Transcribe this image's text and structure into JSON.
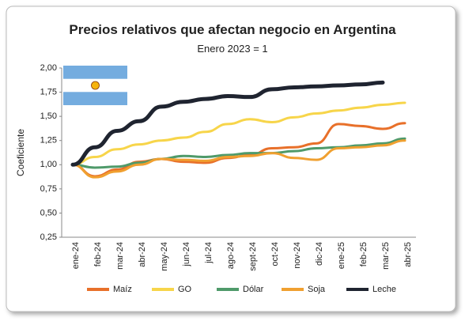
{
  "chart_data": {
    "type": "line",
    "title": "Precios relativos que afectan negocio en Argentina",
    "subtitle": "Enero 2023 = 1",
    "y_label": "Coeficiente",
    "categories": [
      "ene-24",
      "feb-24",
      "mar-24",
      "abr-24",
      "may-24",
      "jun-24",
      "jul-24",
      "ago-24",
      "sept-24",
      "oct-24",
      "nov-24",
      "dic-24",
      "ene-25",
      "feb-25",
      "mar-25",
      "abr-25"
    ],
    "series": [
      {
        "name": "Maíz",
        "color": "#e8702a",
        "values": [
          1.0,
          0.88,
          0.95,
          1.03,
          1.06,
          1.03,
          1.02,
          1.07,
          1.1,
          1.17,
          1.18,
          1.22,
          1.42,
          1.4,
          1.37,
          1.43
        ]
      },
      {
        "name": "GO",
        "color": "#f7d54a",
        "values": [
          1.0,
          1.08,
          1.16,
          1.21,
          1.25,
          1.28,
          1.34,
          1.42,
          1.47,
          1.44,
          1.49,
          1.53,
          1.56,
          1.59,
          1.62,
          1.64
        ]
      },
      {
        "name": "Dólar",
        "color": "#4f9a6a",
        "values": [
          1.0,
          0.97,
          0.98,
          1.02,
          1.06,
          1.09,
          1.08,
          1.1,
          1.12,
          1.12,
          1.14,
          1.17,
          1.18,
          1.2,
          1.22,
          1.27
        ]
      },
      {
        "name": "Soja",
        "color": "#f0a030",
        "values": [
          1.0,
          0.87,
          0.93,
          1.0,
          1.06,
          1.05,
          1.04,
          1.08,
          1.09,
          1.12,
          1.07,
          1.05,
          1.17,
          1.18,
          1.2,
          1.25
        ]
      },
      {
        "name": "Leche",
        "color": "#1f2430",
        "values": [
          1.0,
          1.18,
          1.35,
          1.45,
          1.6,
          1.65,
          1.68,
          1.71,
          1.7,
          1.78,
          1.8,
          1.81,
          1.82,
          1.83,
          1.85,
          null
        ]
      }
    ],
    "ylim": [
      0.25,
      2.0
    ],
    "yticks": [
      {
        "value": 0.25,
        "label": "0,25"
      },
      {
        "value": 0.5,
        "label": "0,50"
      },
      {
        "value": 0.75,
        "label": "0,75"
      },
      {
        "value": 1.0,
        "label": "1,00"
      },
      {
        "value": 1.25,
        "label": "1,25"
      },
      {
        "value": 1.5,
        "label": "1,50"
      },
      {
        "value": 1.75,
        "label": "1,75"
      },
      {
        "value": 2.0,
        "label": "2,00"
      }
    ],
    "legend": "bottom"
  }
}
